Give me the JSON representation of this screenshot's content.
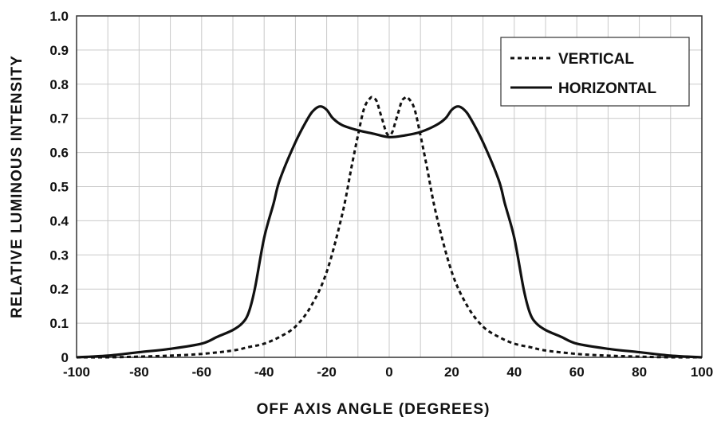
{
  "chart_data": {
    "type": "line",
    "title": "",
    "xlabel": "OFF  AXIS  ANGLE  (DEGREES)",
    "ylabel": "RELATIVE  LUMINOUS  INTENSITY",
    "xlim": [
      -100,
      100
    ],
    "ylim": [
      0,
      1.0
    ],
    "grid": true,
    "legend_position": "top-right",
    "x_ticks": [
      "-100",
      "-80",
      "-60",
      "-40",
      "-20",
      "0",
      "20",
      "40",
      "60",
      "80",
      "100"
    ],
    "y_ticks": [
      "0",
      "0.1",
      "0.2",
      "0.3",
      "0.4",
      "0.5",
      "0.6",
      "0.7",
      "0.8",
      "0.9",
      "1.0"
    ],
    "series": [
      {
        "name": "VERTICAL",
        "style": "dashed",
        "color": "#111111",
        "x": [
          -100,
          -90,
          -80,
          -70,
          -60,
          -50,
          -45,
          -40,
          -35,
          -30,
          -25,
          -20,
          -15,
          -12,
          -10,
          -8,
          -6,
          -5,
          -4,
          -3,
          -2,
          -1,
          0,
          1,
          2,
          3,
          4,
          5,
          6,
          8,
          10,
          12,
          15,
          20,
          25,
          30,
          35,
          40,
          45,
          50,
          60,
          70,
          80,
          90,
          100
        ],
        "y": [
          0,
          0,
          0.002,
          0.005,
          0.01,
          0.02,
          0.03,
          0.04,
          0.06,
          0.09,
          0.15,
          0.25,
          0.42,
          0.56,
          0.65,
          0.73,
          0.76,
          0.76,
          0.75,
          0.72,
          0.69,
          0.66,
          0.65,
          0.66,
          0.69,
          0.72,
          0.75,
          0.76,
          0.76,
          0.73,
          0.65,
          0.56,
          0.42,
          0.25,
          0.15,
          0.09,
          0.06,
          0.04,
          0.03,
          0.02,
          0.01,
          0.005,
          0.002,
          0,
          0
        ]
      },
      {
        "name": "HORIZONTAL",
        "style": "solid",
        "color": "#111111",
        "x": [
          -100,
          -90,
          -80,
          -70,
          -60,
          -55,
          -50,
          -47,
          -45,
          -43,
          -40,
          -37,
          -35,
          -30,
          -26,
          -24,
          -22,
          -20,
          -18,
          -15,
          -10,
          -5,
          0,
          5,
          10,
          15,
          18,
          20,
          22,
          24,
          26,
          30,
          35,
          37,
          40,
          43,
          45,
          47,
          50,
          55,
          60,
          70,
          80,
          90,
          100
        ],
        "y": [
          0,
          0.005,
          0.015,
          0.025,
          0.04,
          0.06,
          0.08,
          0.1,
          0.13,
          0.2,
          0.35,
          0.45,
          0.52,
          0.63,
          0.7,
          0.725,
          0.735,
          0.725,
          0.7,
          0.68,
          0.665,
          0.655,
          0.645,
          0.65,
          0.66,
          0.68,
          0.7,
          0.725,
          0.735,
          0.725,
          0.7,
          0.63,
          0.52,
          0.45,
          0.35,
          0.2,
          0.13,
          0.1,
          0.08,
          0.06,
          0.04,
          0.025,
          0.015,
          0.005,
          0
        ]
      }
    ]
  }
}
